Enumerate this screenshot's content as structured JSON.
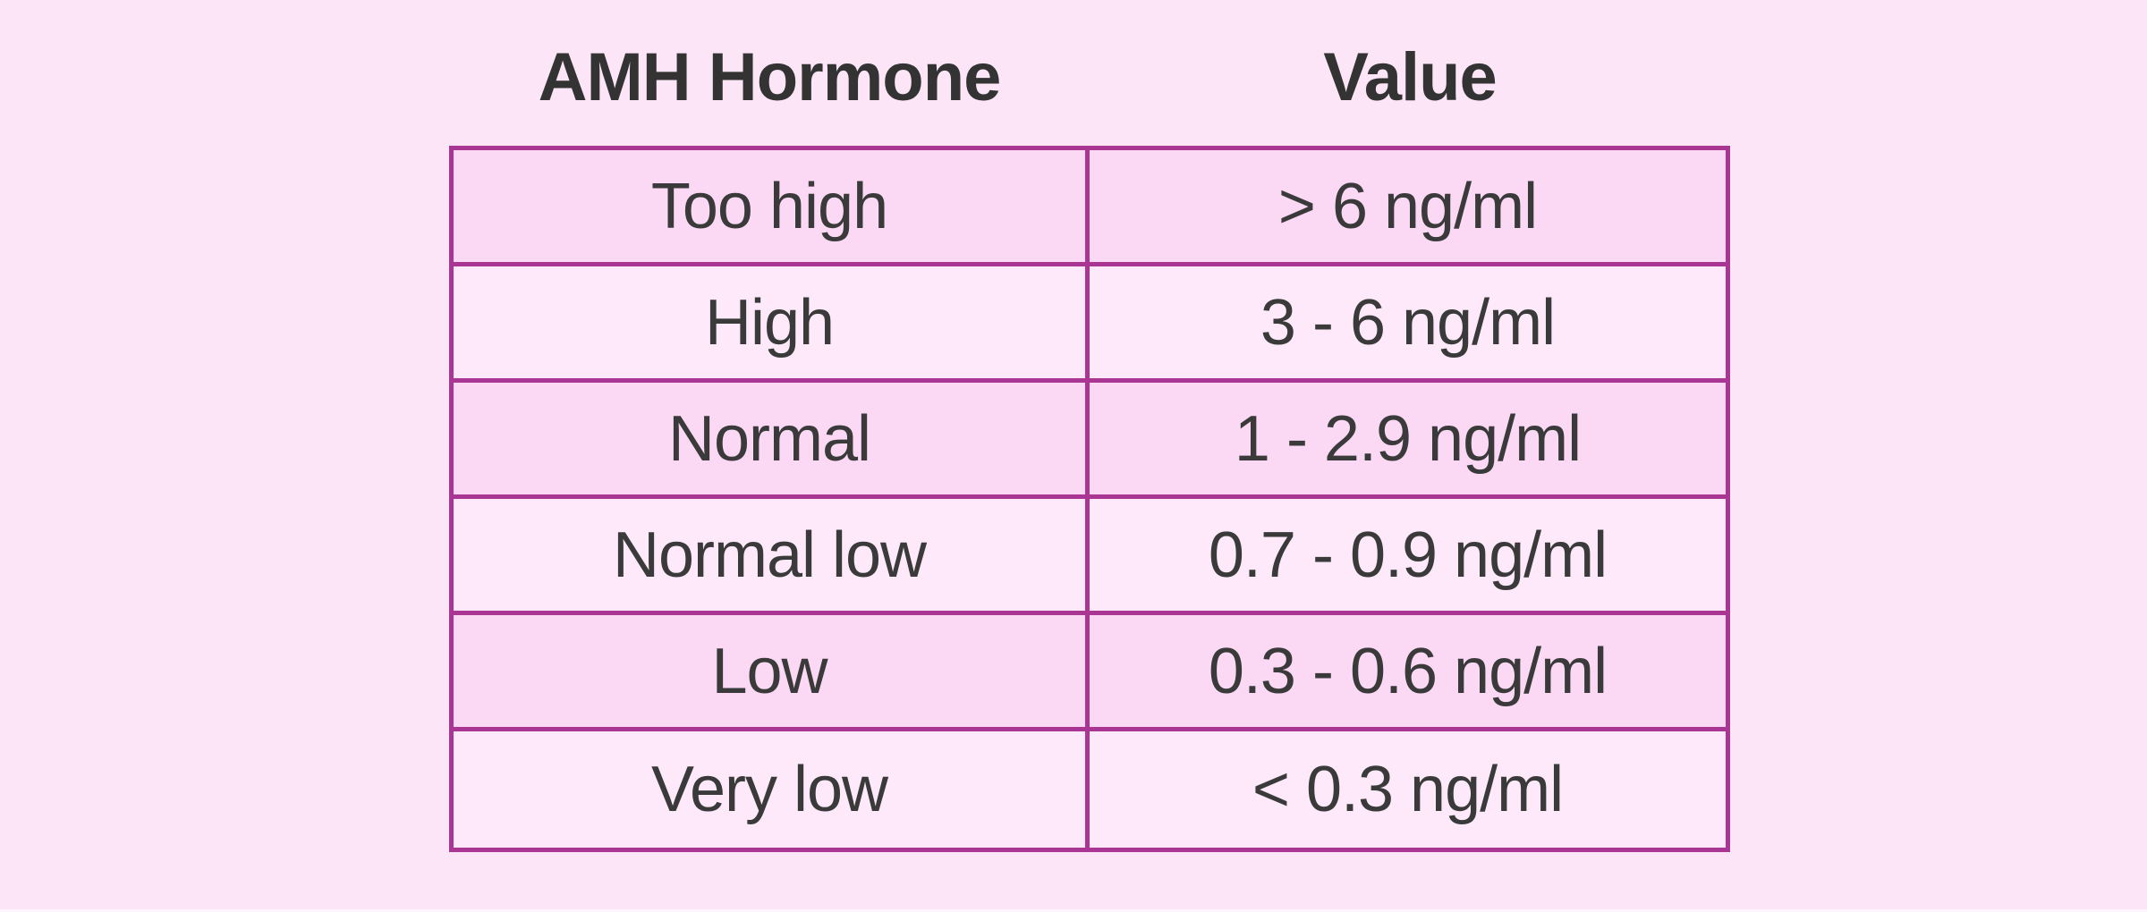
{
  "colors": {
    "page_background": "#fce5f6",
    "row_odd": "#fbd8f4",
    "row_even": "#fee9fb",
    "border": "#a93693",
    "text": "#3a3a3a",
    "header_text": "#333333",
    "bottom_strip": "#fef6fc"
  },
  "chart_data": {
    "type": "table",
    "columns": [
      "AMH Hormone",
      "Value"
    ],
    "rows": [
      [
        "Too high",
        "> 6 ng/ml"
      ],
      [
        "High",
        "3 - 6 ng/ml"
      ],
      [
        "Normal",
        "1 - 2.9 ng/ml"
      ],
      [
        "Normal low",
        "0.7 - 0.9 ng/ml"
      ],
      [
        "Low",
        "0.3 - 0.6 ng/ml"
      ],
      [
        "Very low",
        "< 0.3 ng/ml"
      ]
    ],
    "layout": {
      "legend": "none",
      "grid": "full-borders",
      "row_striping": "odd-dark-pink-even-light-pink"
    }
  }
}
